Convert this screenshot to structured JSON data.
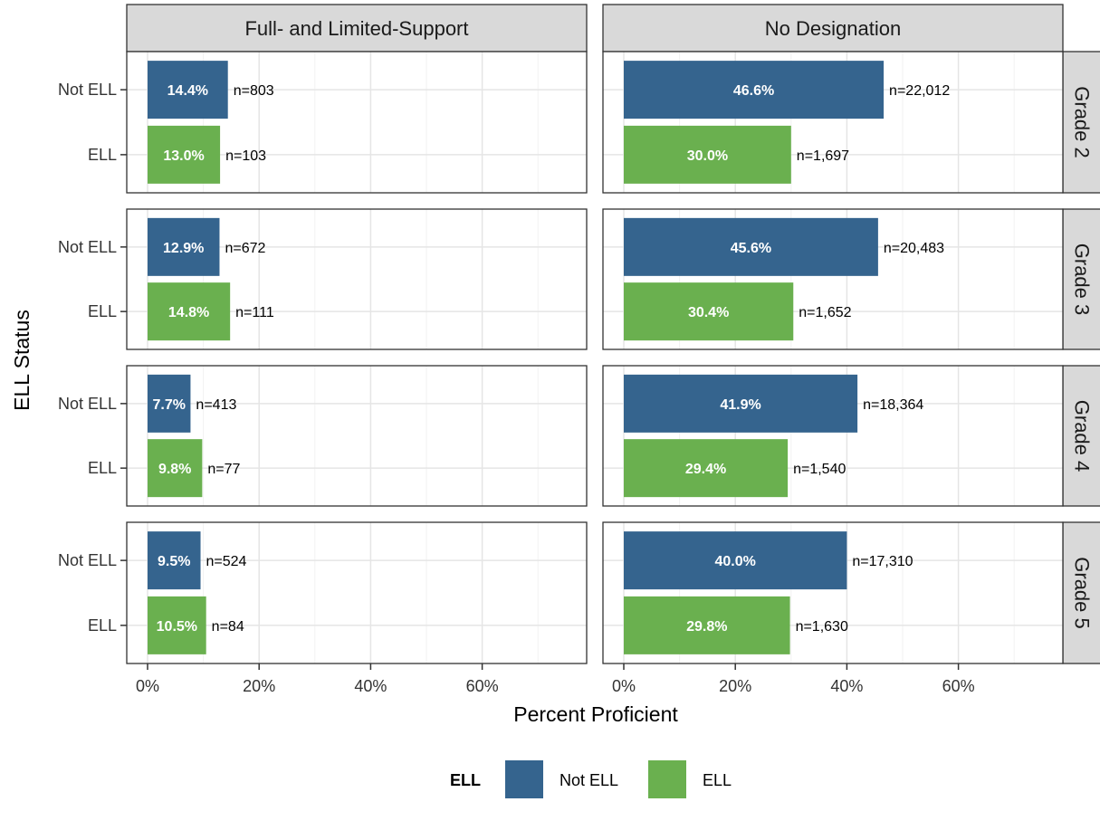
{
  "chart_data": {
    "type": "bar",
    "orientation": "horizontal",
    "xlabel": "Percent Proficient",
    "ylabel": "ELL Status",
    "xlim": [
      0,
      0.77
    ],
    "x_ticks": [
      0,
      0.2,
      0.4,
      0.6
    ],
    "x_tick_labels": [
      "0%",
      "20%",
      "40%",
      "60%"
    ],
    "grid": true,
    "categories": [
      "Not ELL",
      "ELL"
    ],
    "column_facets": [
      "Full- and Limited-Support",
      "No Designation"
    ],
    "row_facets": [
      "Grade 2",
      "Grade 3",
      "Grade 4",
      "Grade 5"
    ],
    "legend": {
      "title": "ELL",
      "position": "bottom",
      "entries": [
        {
          "label": "Not ELL",
          "color": "#35648e"
        },
        {
          "label": "ELL",
          "color": "#6ab04f"
        }
      ]
    },
    "panels": [
      {
        "grade": "Grade 2",
        "group": "Full- and Limited-Support",
        "bars": [
          {
            "category": "Not ELL",
            "value": 0.144,
            "label": "14.4%",
            "n": "n=803"
          },
          {
            "category": "ELL",
            "value": 0.13,
            "label": "13.0%",
            "n": "n=103"
          }
        ]
      },
      {
        "grade": "Grade 2",
        "group": "No Designation",
        "bars": [
          {
            "category": "Not ELL",
            "value": 0.466,
            "label": "46.6%",
            "n": "n=22,012"
          },
          {
            "category": "ELL",
            "value": 0.3,
            "label": "30.0%",
            "n": "n=1,697"
          }
        ]
      },
      {
        "grade": "Grade 3",
        "group": "Full- and Limited-Support",
        "bars": [
          {
            "category": "Not ELL",
            "value": 0.129,
            "label": "12.9%",
            "n": "n=672"
          },
          {
            "category": "ELL",
            "value": 0.148,
            "label": "14.8%",
            "n": "n=111"
          }
        ]
      },
      {
        "grade": "Grade 3",
        "group": "No Designation",
        "bars": [
          {
            "category": "Not ELL",
            "value": 0.456,
            "label": "45.6%",
            "n": "n=20,483"
          },
          {
            "category": "ELL",
            "value": 0.304,
            "label": "30.4%",
            "n": "n=1,652"
          }
        ]
      },
      {
        "grade": "Grade 4",
        "group": "Full- and Limited-Support",
        "bars": [
          {
            "category": "Not ELL",
            "value": 0.077,
            "label": "7.7%",
            "n": "n=413"
          },
          {
            "category": "ELL",
            "value": 0.098,
            "label": "9.8%",
            "n": "n=77"
          }
        ]
      },
      {
        "grade": "Grade 4",
        "group": "No Designation",
        "bars": [
          {
            "category": "Not ELL",
            "value": 0.419,
            "label": "41.9%",
            "n": "n=18,364"
          },
          {
            "category": "ELL",
            "value": 0.294,
            "label": "29.4%",
            "n": "n=1,540"
          }
        ]
      },
      {
        "grade": "Grade 5",
        "group": "Full- and Limited-Support",
        "bars": [
          {
            "category": "Not ELL",
            "value": 0.095,
            "label": "9.5%",
            "n": "n=524"
          },
          {
            "category": "ELL",
            "value": 0.105,
            "label": "10.5%",
            "n": "n=84"
          }
        ]
      },
      {
        "grade": "Grade 5",
        "group": "No Designation",
        "bars": [
          {
            "category": "Not ELL",
            "value": 0.4,
            "label": "40.0%",
            "n": "n=17,310"
          },
          {
            "category": "ELL",
            "value": 0.298,
            "label": "29.8%",
            "n": "n=1,630"
          }
        ]
      }
    ]
  }
}
